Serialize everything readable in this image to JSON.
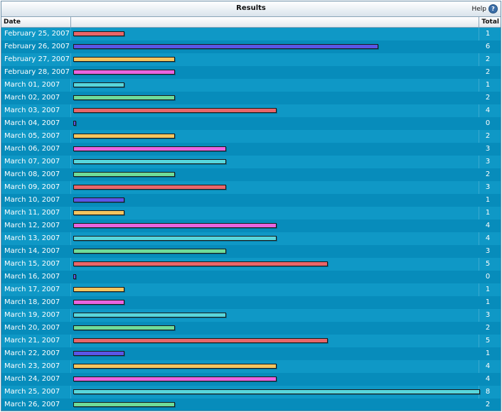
{
  "panel": {
    "title": "Results",
    "help_label": "Help",
    "help_icon": "question-icon"
  },
  "table": {
    "date_header": "Date",
    "total_header": "Total"
  },
  "chart_data": {
    "type": "bar",
    "orientation": "horizontal",
    "title": "Results",
    "xlim": [
      0,
      8
    ],
    "categories": [
      "February 25, 2007",
      "February 26, 2007",
      "February 27, 2007",
      "February 28, 2007",
      "March 01, 2007",
      "March 02, 2007",
      "March 03, 2007",
      "March 04, 2007",
      "March 05, 2007",
      "March 06, 2007",
      "March 07, 2007",
      "March 08, 2007",
      "March 09, 2007",
      "March 10, 2007",
      "March 11, 2007",
      "March 12, 2007",
      "March 13, 2007",
      "March 14, 2007",
      "March 15, 2007",
      "March 16, 2007",
      "March 17, 2007",
      "March 18, 2007",
      "March 19, 2007",
      "March 20, 2007",
      "March 21, 2007",
      "March 22, 2007",
      "March 23, 2007",
      "March 24, 2007",
      "March 25, 2007",
      "March 26, 2007"
    ],
    "values": [
      1,
      6,
      2,
      2,
      1,
      2,
      4,
      0,
      2,
      3,
      3,
      2,
      3,
      1,
      1,
      4,
      4,
      3,
      5,
      0,
      1,
      1,
      3,
      2,
      5,
      1,
      4,
      4,
      8,
      2
    ],
    "bar_colors": [
      "#e8666a",
      "#5b56e6",
      "#f4c560",
      "#e865e0",
      "#58d6dc",
      "#6fdc9a",
      "#e8666a",
      "#5b56e6",
      "#f4c560",
      "#e865e0",
      "#58d6dc",
      "#6fdc9a",
      "#e8666a",
      "#5b56e6",
      "#f4c560",
      "#e865e0",
      "#58d6dc",
      "#6fdc9a",
      "#e8666a",
      "#5b56e6",
      "#f4c560",
      "#e865e0",
      "#58d6dc",
      "#6fdc9a",
      "#e8666a",
      "#5b56e6",
      "#f4c560",
      "#e865e0",
      "#58d6dc",
      "#6fdc9a"
    ]
  }
}
